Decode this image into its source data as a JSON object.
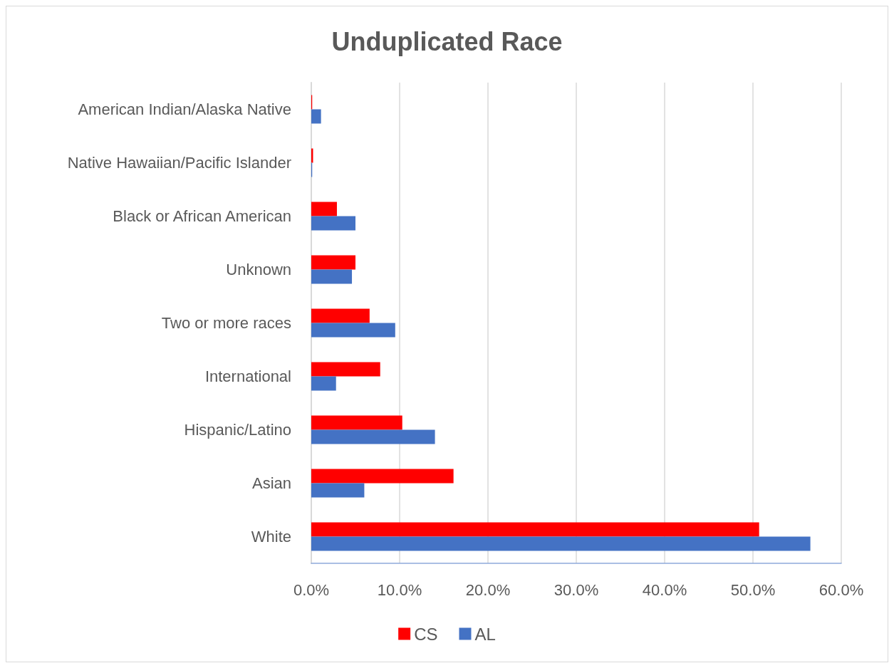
{
  "chart_data": {
    "type": "bar",
    "orientation": "horizontal",
    "title": "Unduplicated Race",
    "categories": [
      "American Indian/Alaska Native",
      "Native Hawaiian/Pacific Islander",
      "Black or African American",
      "Unknown",
      "Two or more races",
      "International",
      "Hispanic/Latino",
      "Asian",
      "White"
    ],
    "series": [
      {
        "name": "CS",
        "color": "#ff0000",
        "values": [
          0.1,
          0.2,
          2.9,
          5.0,
          6.6,
          7.8,
          10.3,
          16.1,
          50.7
        ]
      },
      {
        "name": "AL",
        "color": "#4472c4",
        "values": [
          1.1,
          0.1,
          5.0,
          4.6,
          9.5,
          2.8,
          14.0,
          6.0,
          56.5
        ]
      }
    ],
    "xlim": [
      0,
      60
    ],
    "xticks": [
      {
        "value": 0,
        "label": "0.0%"
      },
      {
        "value": 10,
        "label": "10.0%"
      },
      {
        "value": 20,
        "label": "20.0%"
      },
      {
        "value": 30,
        "label": "30.0%"
      },
      {
        "value": 40,
        "label": "40.0%"
      },
      {
        "value": 50,
        "label": "50.0%"
      },
      {
        "value": 60,
        "label": "60.0%"
      }
    ],
    "grid": "x",
    "legend": "bottom"
  }
}
